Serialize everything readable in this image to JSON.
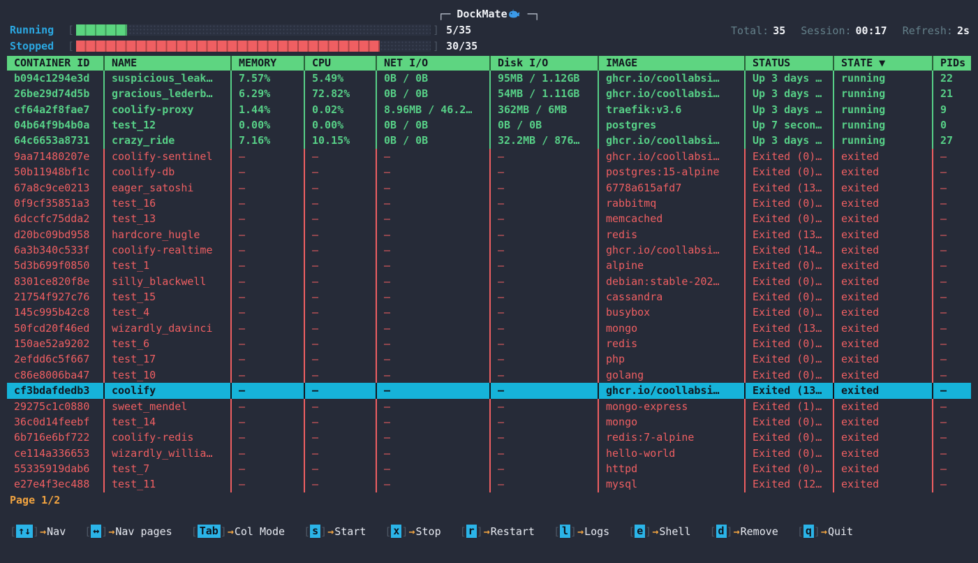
{
  "title": {
    "frame_left": "┌─",
    "app_name": "DockMate",
    "frame_right": "─┐",
    "icon": "whale-icon"
  },
  "summary": {
    "running_label": "Running",
    "running_count": "5/35",
    "running_value": 5,
    "stopped_label": "Stopped",
    "stopped_count": "30/35",
    "stopped_value": 30,
    "total_segments": 35
  },
  "stats": {
    "total_label": "Total:",
    "total_value": "35",
    "session_label": "Session:",
    "session_value": "00:17",
    "refresh_label": "Refresh:",
    "refresh_value": "2s"
  },
  "table": {
    "columns": [
      "CONTAINER ID",
      "NAME",
      "MEMORY",
      "CPU",
      "NET I/O",
      "Disk I/O",
      "IMAGE",
      "STATUS",
      "STATE ▼",
      "PIDs"
    ],
    "rows": [
      {
        "id": "b094c1294e3d",
        "name": "suspicious_leak…",
        "memory": "7.57%",
        "cpu": "5.49%",
        "net_io": "0B / 0B",
        "disk_io": "95MB / 1.12GB",
        "image": "ghcr.io/coollabsi…",
        "status": "Up 3 days …",
        "state": "running",
        "pids": "22",
        "kind": "running",
        "selected": false
      },
      {
        "id": "26be29d74d5b",
        "name": "gracious_lederb…",
        "memory": "6.29%",
        "cpu": "72.82%",
        "net_io": "0B / 0B",
        "disk_io": "54MB / 1.11GB",
        "image": "ghcr.io/coollabsi…",
        "status": "Up 3 days …",
        "state": "running",
        "pids": "21",
        "kind": "running",
        "selected": false
      },
      {
        "id": "cf64a2f8fae7",
        "name": "coolify-proxy",
        "memory": "1.44%",
        "cpu": "0.02%",
        "net_io": "8.96MB / 46.2…",
        "disk_io": "362MB / 6MB",
        "image": "traefik:v3.6",
        "status": "Up 3 days …",
        "state": "running",
        "pids": "9",
        "kind": "running",
        "selected": false
      },
      {
        "id": "04b64f9b4b0a",
        "name": "test_12",
        "memory": "0.00%",
        "cpu": "0.00%",
        "net_io": "0B / 0B",
        "disk_io": "0B / 0B",
        "image": "postgres",
        "status": "Up 7 secon…",
        "state": "running",
        "pids": "0",
        "kind": "running",
        "selected": false
      },
      {
        "id": "64c6653a8731",
        "name": "crazy_ride",
        "memory": "7.16%",
        "cpu": "10.15%",
        "net_io": "0B / 0B",
        "disk_io": "32.2MB / 876…",
        "image": "ghcr.io/coollabsi…",
        "status": "Up 3 days …",
        "state": "running",
        "pids": "27",
        "kind": "running",
        "selected": false
      },
      {
        "id": "9aa71480207e",
        "name": "coolify-sentinel",
        "memory": "—",
        "cpu": "—",
        "net_io": "—",
        "disk_io": "—",
        "image": "ghcr.io/coollabsi…",
        "status": "Exited (0)…",
        "state": "exited",
        "pids": "—",
        "kind": "exited",
        "selected": false
      },
      {
        "id": "50b11948bf1c",
        "name": "coolify-db",
        "memory": "—",
        "cpu": "—",
        "net_io": "—",
        "disk_io": "—",
        "image": "postgres:15-alpine",
        "status": "Exited (0)…",
        "state": "exited",
        "pids": "—",
        "kind": "exited",
        "selected": false
      },
      {
        "id": "67a8c9ce0213",
        "name": "eager_satoshi",
        "memory": "—",
        "cpu": "—",
        "net_io": "—",
        "disk_io": "—",
        "image": "6778a615afd7",
        "status": "Exited (13…",
        "state": "exited",
        "pids": "—",
        "kind": "exited",
        "selected": false
      },
      {
        "id": "0f9cf35851a3",
        "name": "test_16",
        "memory": "—",
        "cpu": "—",
        "net_io": "—",
        "disk_io": "—",
        "image": "rabbitmq",
        "status": "Exited (0)…",
        "state": "exited",
        "pids": "—",
        "kind": "exited",
        "selected": false
      },
      {
        "id": "6dccfc75dda2",
        "name": "test_13",
        "memory": "—",
        "cpu": "—",
        "net_io": "—",
        "disk_io": "—",
        "image": "memcached",
        "status": "Exited (0)…",
        "state": "exited",
        "pids": "—",
        "kind": "exited",
        "selected": false
      },
      {
        "id": "d20bc09bd958",
        "name": "hardcore_hugle",
        "memory": "—",
        "cpu": "—",
        "net_io": "—",
        "disk_io": "—",
        "image": "redis",
        "status": "Exited (13…",
        "state": "exited",
        "pids": "—",
        "kind": "exited",
        "selected": false
      },
      {
        "id": "6a3b340c533f",
        "name": "coolify-realtime",
        "memory": "—",
        "cpu": "—",
        "net_io": "—",
        "disk_io": "—",
        "image": "ghcr.io/coollabsi…",
        "status": "Exited (14…",
        "state": "exited",
        "pids": "—",
        "kind": "exited",
        "selected": false
      },
      {
        "id": "5d3b699f0850",
        "name": "test_1",
        "memory": "—",
        "cpu": "—",
        "net_io": "—",
        "disk_io": "—",
        "image": "alpine",
        "status": "Exited (0)…",
        "state": "exited",
        "pids": "—",
        "kind": "exited",
        "selected": false
      },
      {
        "id": "8301ce820f8e",
        "name": "silly_blackwell",
        "memory": "—",
        "cpu": "—",
        "net_io": "—",
        "disk_io": "—",
        "image": "debian:stable-202…",
        "status": "Exited (0)…",
        "state": "exited",
        "pids": "—",
        "kind": "exited",
        "selected": false
      },
      {
        "id": "21754f927c76",
        "name": "test_15",
        "memory": "—",
        "cpu": "—",
        "net_io": "—",
        "disk_io": "—",
        "image": "cassandra",
        "status": "Exited (0)…",
        "state": "exited",
        "pids": "—",
        "kind": "exited",
        "selected": false
      },
      {
        "id": "145c995b42c8",
        "name": "test_4",
        "memory": "—",
        "cpu": "—",
        "net_io": "—",
        "disk_io": "—",
        "image": "busybox",
        "status": "Exited (0)…",
        "state": "exited",
        "pids": "—",
        "kind": "exited",
        "selected": false
      },
      {
        "id": "50fcd20f46ed",
        "name": "wizardly_davinci",
        "memory": "—",
        "cpu": "—",
        "net_io": "—",
        "disk_io": "—",
        "image": "mongo",
        "status": "Exited (13…",
        "state": "exited",
        "pids": "—",
        "kind": "exited",
        "selected": false
      },
      {
        "id": "150ae52a9202",
        "name": "test_6",
        "memory": "—",
        "cpu": "—",
        "net_io": "—",
        "disk_io": "—",
        "image": "redis",
        "status": "Exited (0)…",
        "state": "exited",
        "pids": "—",
        "kind": "exited",
        "selected": false
      },
      {
        "id": "2efdd6c5f667",
        "name": "test_17",
        "memory": "—",
        "cpu": "—",
        "net_io": "—",
        "disk_io": "—",
        "image": "php",
        "status": "Exited (0)…",
        "state": "exited",
        "pids": "—",
        "kind": "exited",
        "selected": false
      },
      {
        "id": "c86e8006ba47",
        "name": "test_10",
        "memory": "—",
        "cpu": "—",
        "net_io": "—",
        "disk_io": "—",
        "image": "golang",
        "status": "Exited (0)…",
        "state": "exited",
        "pids": "—",
        "kind": "exited",
        "selected": false
      },
      {
        "id": "cf3bdafdedb3",
        "name": "coolify",
        "memory": "—",
        "cpu": "—",
        "net_io": "—",
        "disk_io": "—",
        "image": "ghcr.io/coollabsi…",
        "status": "Exited (13…",
        "state": "exited",
        "pids": "—",
        "kind": "exited",
        "selected": true
      },
      {
        "id": "29275c1c0880",
        "name": "sweet_mendel",
        "memory": "—",
        "cpu": "—",
        "net_io": "—",
        "disk_io": "—",
        "image": "mongo-express",
        "status": "Exited (1)…",
        "state": "exited",
        "pids": "—",
        "kind": "exited",
        "selected": false
      },
      {
        "id": "36c0d14feebf",
        "name": "test_14",
        "memory": "—",
        "cpu": "—",
        "net_io": "—",
        "disk_io": "—",
        "image": "mongo",
        "status": "Exited (0)…",
        "state": "exited",
        "pids": "—",
        "kind": "exited",
        "selected": false
      },
      {
        "id": "6b716e6bf722",
        "name": "coolify-redis",
        "memory": "—",
        "cpu": "—",
        "net_io": "—",
        "disk_io": "—",
        "image": "redis:7-alpine",
        "status": "Exited (0)…",
        "state": "exited",
        "pids": "—",
        "kind": "exited",
        "selected": false
      },
      {
        "id": "ce114a336653",
        "name": "wizardly_willia…",
        "memory": "—",
        "cpu": "—",
        "net_io": "—",
        "disk_io": "—",
        "image": "hello-world",
        "status": "Exited (0)…",
        "state": "exited",
        "pids": "—",
        "kind": "exited",
        "selected": false
      },
      {
        "id": "55335919dab6",
        "name": "test_7",
        "memory": "—",
        "cpu": "—",
        "net_io": "—",
        "disk_io": "—",
        "image": "httpd",
        "status": "Exited (0)…",
        "state": "exited",
        "pids": "—",
        "kind": "exited",
        "selected": false
      },
      {
        "id": "e27e4f3ec488",
        "name": "test_11",
        "memory": "—",
        "cpu": "—",
        "net_io": "—",
        "disk_io": "—",
        "image": "mysql",
        "status": "Exited (12…",
        "state": "exited",
        "pids": "—",
        "kind": "exited",
        "selected": false
      }
    ]
  },
  "pagination": {
    "label": "Page 1/2"
  },
  "keybindings": [
    {
      "key": "↑↓",
      "action": "Nav"
    },
    {
      "key": "↔",
      "action": "Nav pages"
    },
    {
      "key": "Tab",
      "action": "Col Mode"
    },
    {
      "key": "s",
      "action": "Start"
    },
    {
      "key": "x",
      "action": "Stop"
    },
    {
      "key": "r",
      "action": "Restart"
    },
    {
      "key": "l",
      "action": "Logs"
    },
    {
      "key": "e",
      "action": "Shell"
    },
    {
      "key": "d",
      "action": "Remove"
    },
    {
      "key": "q",
      "action": "Quit"
    }
  ],
  "colors": {
    "background": "#262b38",
    "running_green": "#57d087",
    "header_green": "#5ed581",
    "exited_red": "#ef5f62",
    "selection_cyan": "#16b3d9",
    "key_cyan": "#2bb4e8",
    "gauge_label_blue": "#2ba8e2",
    "accent_orange": "#f2a440"
  }
}
